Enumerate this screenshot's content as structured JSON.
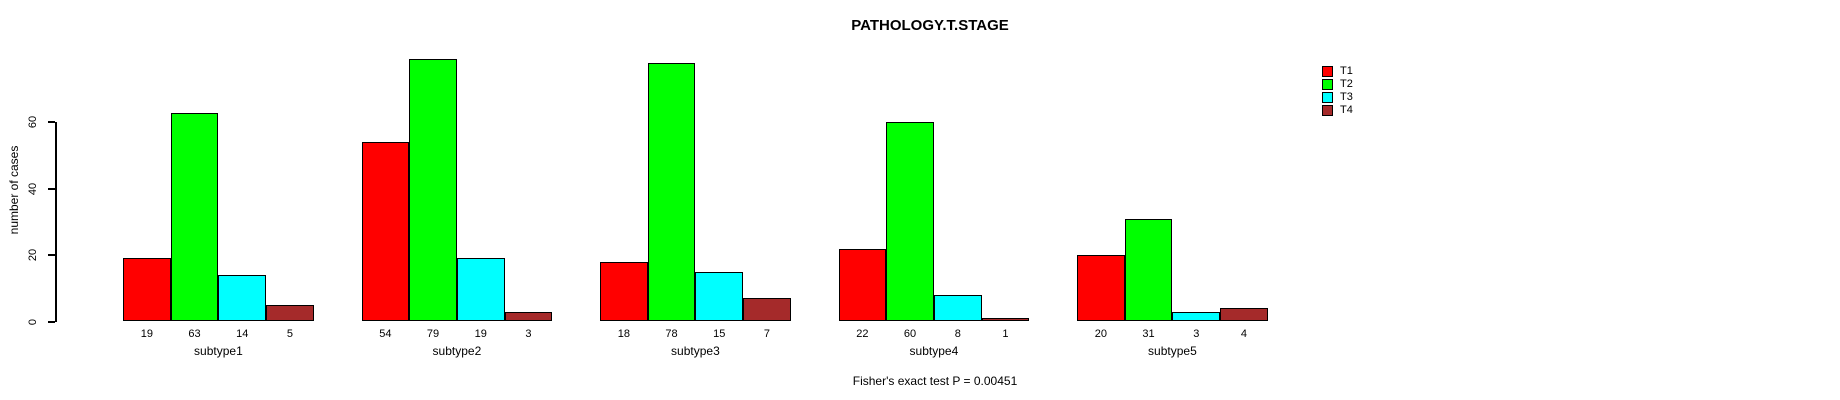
{
  "chart_data": {
    "type": "bar",
    "title": "PATHOLOGY.T.STAGE",
    "categories": [
      "subtype1",
      "subtype2",
      "subtype3",
      "subtype4",
      "subtype5"
    ],
    "series": [
      {
        "name": "T1",
        "color": "#FF0000",
        "values": [
          19,
          54,
          18,
          22,
          20
        ]
      },
      {
        "name": "T2",
        "color": "#00FF00",
        "values": [
          63,
          79,
          78,
          60,
          31
        ]
      },
      {
        "name": "T3",
        "color": "#00FFFF",
        "values": [
          14,
          19,
          15,
          8,
          3
        ]
      },
      {
        "name": "T4",
        "color": "#A52A2A",
        "values": [
          5,
          3,
          7,
          1,
          4
        ]
      }
    ],
    "xlabel": "",
    "ylabel": "number of cases",
    "ylim": [
      0,
      80
    ],
    "yticks": [
      0,
      20,
      40,
      60
    ],
    "bar_value_labels": true,
    "grid": false,
    "legend_position": "right",
    "annotation": "Fisher's exact test P = 0.00451"
  }
}
